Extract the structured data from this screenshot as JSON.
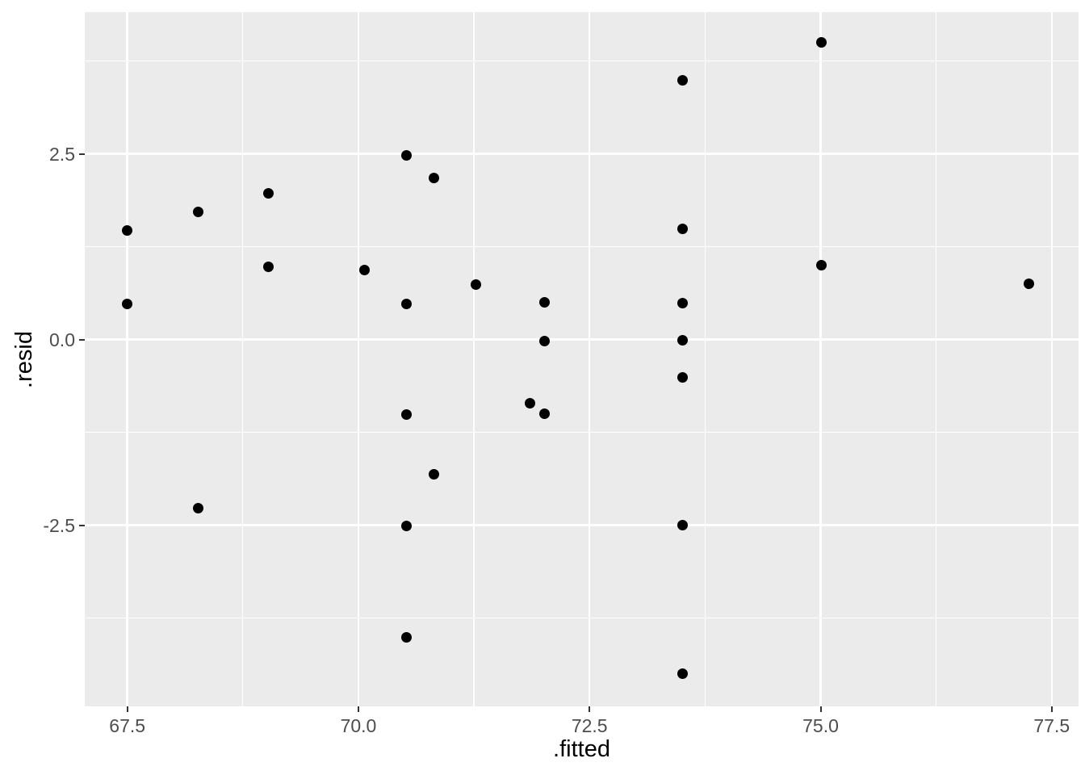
{
  "chart_data": {
    "type": "scatter",
    "title": "",
    "xlabel": ".fitted",
    "ylabel": ".resid",
    "xlim": [
      67.04,
      77.79
    ],
    "ylim": [
      -4.94,
      4.41
    ],
    "x_ticks": [
      67.5,
      70.0,
      72.5,
      75.0,
      77.5
    ],
    "x_tick_labels": [
      "67.5",
      "70.0",
      "72.5",
      "75.0",
      "77.5"
    ],
    "y_ticks": [
      2.5,
      0.0,
      -2.5
    ],
    "y_tick_labels": [
      "2.5",
      "0.0",
      "-2.5"
    ],
    "x_minor_breaks": [
      68.75,
      71.25,
      73.75,
      76.25
    ],
    "y_minor_breaks": [
      3.75,
      1.25,
      -1.25,
      -3.75
    ],
    "grid": true,
    "legend": false,
    "points": [
      {
        "x": 67.5,
        "y": 1.47
      },
      {
        "x": 67.5,
        "y": 0.48
      },
      {
        "x": 68.27,
        "y": 1.72
      },
      {
        "x": 68.27,
        "y": -2.27
      },
      {
        "x": 69.03,
        "y": 1.97
      },
      {
        "x": 69.03,
        "y": 0.98
      },
      {
        "x": 70.07,
        "y": 0.94
      },
      {
        "x": 70.52,
        "y": 2.48
      },
      {
        "x": 70.52,
        "y": 0.48
      },
      {
        "x": 70.52,
        "y": -1.01
      },
      {
        "x": 70.52,
        "y": -2.51
      },
      {
        "x": 70.52,
        "y": -4.01
      },
      {
        "x": 70.82,
        "y": 2.18
      },
      {
        "x": 70.82,
        "y": -1.81
      },
      {
        "x": 71.27,
        "y": 0.74
      },
      {
        "x": 71.86,
        "y": -0.86
      },
      {
        "x": 72.01,
        "y": 0.5
      },
      {
        "x": 72.01,
        "y": -0.02
      },
      {
        "x": 72.01,
        "y": -1.0
      },
      {
        "x": 73.51,
        "y": 3.49
      },
      {
        "x": 73.51,
        "y": 1.49
      },
      {
        "x": 73.51,
        "y": 0.49
      },
      {
        "x": 73.51,
        "y": -0.01
      },
      {
        "x": 73.51,
        "y": -0.51
      },
      {
        "x": 73.51,
        "y": -2.5
      },
      {
        "x": 73.51,
        "y": -4.5
      },
      {
        "x": 75.01,
        "y": 4.0
      },
      {
        "x": 75.01,
        "y": 1.0
      },
      {
        "x": 77.25,
        "y": 0.75
      }
    ]
  },
  "style": {
    "panel_bg": "#EBEBEB",
    "grid_color": "#FFFFFF",
    "point_color": "#000000",
    "tick_label_color": "#4D4D4D",
    "tick_mark_color": "#333333",
    "axis_title_color": "#000000",
    "outer_bg": "#FFFFFF"
  }
}
